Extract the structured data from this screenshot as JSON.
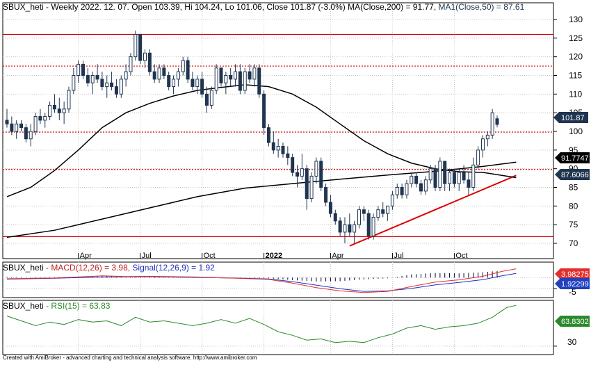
{
  "colors": {
    "background": "#ffffff",
    "grid": "#c8c8c8",
    "frame": "#000000",
    "candle_up_fill": "#ffffff",
    "candle_up_stroke": "#1f3550",
    "candle_down_fill": "#1f3550",
    "ma200": "#000000",
    "ma50": "#000000",
    "hline_solid": "#d40000",
    "hline_dotted": "#d40000",
    "trendline": "#e00000",
    "macd_line": "#e03030",
    "signal_line": "#2030c0",
    "histogram": "#000033",
    "rsi_line": "#2a8a2a",
    "price_badge": "#1f3550",
    "ma200_badge": "#000000",
    "ma50_badge": "#1f3550",
    "macd_badge": "#e03030",
    "signal_badge": "#2040c0",
    "rsi_badge": "#2a8a2a"
  },
  "price_panel": {
    "title_symbol": "SBUX_heti",
    "title_info": " - Weekly 2022. 12. 07. Open 103.39, Hi 104.24, Lo 101.06, Close 101.87 (-3.0%)",
    "title_ma200": " MA(Close,200) = 91.77,",
    "title_ma50": " MA1(Close,50) = 87.61",
    "badge_close": "101.87",
    "badge_ma200": "91.7747",
    "badge_ma50": "87.6066"
  },
  "macd_panel": {
    "title_symbol": "SBUX_heti",
    "title_macd": " - MACD(12,26) = 3.98,",
    "title_signal": " Signal(12,26,9) = 1.92",
    "badge_macd": "3.98275",
    "badge_signal": "1.92299",
    "tick_label": "-5"
  },
  "rsi_panel": {
    "title_symbol": "SBUX_heti",
    "title_rsi": " - RSI(15) = 63.83",
    "badge_rsi": "63.8302",
    "tick_label": "30"
  },
  "footer": "Created with AmiBroker - advanced charting and technical analysis software. http://www.amibroker.com",
  "chart_data": {
    "type": "candlestick",
    "title": "SBUX_heti - Weekly 2022. 12. 07. Open 103.39, Hi 104.24, Lo 101.06, Close 101.87 (-3.0%)",
    "period": "weekly",
    "y_ticks": [
      70,
      75,
      80,
      85,
      90,
      95,
      100,
      105,
      110,
      115,
      120,
      125,
      130
    ],
    "ylim": [
      67,
      131
    ],
    "x_tick_labels": [
      {
        "label": "Apr",
        "index": 15
      },
      {
        "label": "Jul",
        "index": 28
      },
      {
        "label": "Oct",
        "index": 41
      },
      {
        "label": "2022",
        "index": 54
      },
      {
        "label": "Apr",
        "index": 68
      },
      {
        "label": "Jul",
        "index": 81
      },
      {
        "label": "Oct",
        "index": 94
      }
    ],
    "horizontal_lines": [
      {
        "value": 126.0,
        "style": "solid"
      },
      {
        "value": 117.5,
        "style": "dotted"
      },
      {
        "value": 99.8,
        "style": "dotted"
      },
      {
        "value": 89.8,
        "style": "dotted"
      },
      {
        "value": 71.8,
        "style": "solid"
      }
    ],
    "trendline": {
      "from": {
        "index": 72,
        "value": 69.3
      },
      "to": {
        "index": 107,
        "value": 88.2
      }
    },
    "candles": [
      [
        103,
        106,
        101,
        102
      ],
      [
        102,
        104,
        99,
        100
      ],
      [
        100,
        103,
        98,
        102
      ],
      [
        102,
        103,
        100,
        101
      ],
      [
        101,
        102,
        97,
        98
      ],
      [
        98,
        102,
        96,
        100
      ],
      [
        100,
        105,
        99,
        104
      ],
      [
        104,
        106,
        102,
        103
      ],
      [
        103,
        105,
        101,
        104
      ],
      [
        104,
        108,
        103,
        107
      ],
      [
        107,
        110,
        105,
        106
      ],
      [
        106,
        109,
        103,
        105
      ],
      [
        105,
        108,
        102,
        106
      ],
      [
        106,
        112,
        105,
        111
      ],
      [
        111,
        117,
        110,
        115
      ],
      [
        115,
        119,
        113,
        118
      ],
      [
        118,
        119,
        114,
        115
      ],
      [
        115,
        117,
        112,
        113
      ],
      [
        113,
        116,
        110,
        115
      ],
      [
        115,
        118,
        113,
        114
      ],
      [
        114,
        116,
        111,
        112
      ],
      [
        112,
        115,
        109,
        113
      ],
      [
        113,
        116,
        111,
        112
      ],
      [
        112,
        114,
        109,
        110
      ],
      [
        110,
        115,
        109,
        114
      ],
      [
        114,
        118,
        112,
        116
      ],
      [
        116,
        121,
        115,
        120
      ],
      [
        120,
        127,
        119,
        126
      ],
      [
        126,
        126,
        118,
        119
      ],
      [
        119,
        122,
        117,
        121
      ],
      [
        121,
        122,
        115,
        116
      ],
      [
        116,
        118,
        113,
        114
      ],
      [
        114,
        118,
        113,
        117
      ],
      [
        117,
        118,
        114,
        115
      ],
      [
        115,
        116,
        111,
        112
      ],
      [
        112,
        115,
        110,
        114
      ],
      [
        114,
        117,
        112,
        116
      ],
      [
        116,
        120,
        115,
        119
      ],
      [
        119,
        120,
        113,
        114
      ],
      [
        114,
        116,
        111,
        112
      ],
      [
        112,
        115,
        110,
        114
      ],
      [
        114,
        116,
        109,
        110
      ],
      [
        110,
        112,
        105,
        107
      ],
      [
        107,
        112,
        106,
        111
      ],
      [
        111,
        118,
        110,
        117
      ],
      [
        117,
        117,
        112,
        113
      ],
      [
        113,
        116,
        110,
        115
      ],
      [
        115,
        117,
        112,
        114
      ],
      [
        114,
        118,
        112,
        116
      ],
      [
        116,
        118,
        110,
        111
      ],
      [
        111,
        117,
        110,
        116
      ],
      [
        116,
        118,
        113,
        114
      ],
      [
        114,
        118,
        112,
        117
      ],
      [
        117,
        118,
        109,
        110
      ],
      [
        110,
        111,
        99,
        101
      ],
      [
        101,
        102,
        96,
        97
      ],
      [
        97,
        100,
        94,
        95
      ],
      [
        95,
        98,
        93,
        96
      ],
      [
        96,
        97,
        93,
        94
      ],
      [
        94,
        96,
        91,
        93
      ],
      [
        93,
        94,
        88,
        89
      ],
      [
        89,
        91,
        85,
        88
      ],
      [
        88,
        94,
        87,
        90
      ],
      [
        90,
        91,
        79,
        82
      ],
      [
        82,
        89,
        81,
        88
      ],
      [
        88,
        93,
        86,
        92
      ],
      [
        92,
        93,
        84,
        85
      ],
      [
        85,
        86,
        80,
        81
      ],
      [
        81,
        83,
        77,
        78
      ],
      [
        78,
        79,
        75,
        76
      ],
      [
        76,
        77,
        72,
        73
      ],
      [
        73,
        77,
        70,
        75
      ],
      [
        75,
        78,
        72,
        73
      ],
      [
        73,
        76,
        70,
        75
      ],
      [
        75,
        80,
        74,
        79
      ],
      [
        79,
        80,
        76,
        78
      ],
      [
        78,
        79,
        71,
        72
      ],
      [
        72,
        78,
        71,
        77
      ],
      [
        77,
        80,
        76,
        79
      ],
      [
        79,
        81,
        77,
        78
      ],
      [
        78,
        80,
        76,
        80
      ],
      [
        80,
        84,
        79,
        83
      ],
      [
        83,
        86,
        82,
        85
      ],
      [
        85,
        86,
        82,
        83
      ],
      [
        83,
        87,
        82,
        86
      ],
      [
        86,
        89,
        85,
        88
      ],
      [
        88,
        89,
        85,
        86
      ],
      [
        86,
        87,
        83,
        84
      ],
      [
        84,
        88,
        83,
        87
      ],
      [
        87,
        91,
        86,
        90
      ],
      [
        90,
        91,
        84,
        85
      ],
      [
        85,
        93,
        84,
        92
      ],
      [
        92,
        92,
        84,
        86
      ],
      [
        86,
        90,
        84,
        89
      ],
      [
        89,
        90,
        85,
        86
      ],
      [
        86,
        90,
        84,
        89
      ],
      [
        89,
        91,
        86,
        87
      ],
      [
        87,
        89,
        83,
        85
      ],
      [
        85,
        93,
        84,
        91
      ],
      [
        91,
        96,
        90,
        95
      ],
      [
        95,
        99,
        93,
        98
      ],
      [
        98,
        100,
        96,
        99
      ],
      [
        99,
        106,
        98,
        105
      ],
      [
        103.39,
        104.24,
        101.06,
        101.87
      ]
    ],
    "series": [
      {
        "name": "MA(Close,200)",
        "last": 91.77,
        "values": [
          [
            0,
            71.6
          ],
          [
            10,
            73.5
          ],
          [
            20,
            76.5
          ],
          [
            30,
            79.5
          ],
          [
            40,
            82.5
          ],
          [
            50,
            84.8
          ],
          [
            60,
            86.0
          ],
          [
            70,
            87.2
          ],
          [
            80,
            88.3
          ],
          [
            90,
            89.3
          ],
          [
            100,
            90.6
          ],
          [
            107,
            91.77
          ]
        ]
      },
      {
        "name": "MA1(Close,50)",
        "last": 87.61,
        "values": [
          [
            0,
            82.5
          ],
          [
            5,
            85.0
          ],
          [
            10,
            89.5
          ],
          [
            15,
            95.0
          ],
          [
            20,
            101.0
          ],
          [
            25,
            105.0
          ],
          [
            30,
            107.5
          ],
          [
            35,
            109.5
          ],
          [
            40,
            111.0
          ],
          [
            45,
            111.8
          ],
          [
            50,
            112.5
          ],
          [
            55,
            112.0
          ],
          [
            60,
            110.0
          ],
          [
            65,
            106.5
          ],
          [
            70,
            102.0
          ],
          [
            75,
            97.5
          ],
          [
            80,
            94.0
          ],
          [
            85,
            91.5
          ],
          [
            90,
            90.0
          ],
          [
            95,
            89.2
          ],
          [
            100,
            89.0
          ],
          [
            104,
            88.2
          ],
          [
            107,
            87.61
          ]
        ]
      }
    ],
    "macd": {
      "macd_last": 3.98,
      "signal_last": 1.92,
      "tick_values": [
        -5
      ],
      "ylim": [
        -9,
        7
      ],
      "macd_values": [
        [
          0,
          -0.5
        ],
        [
          10,
          -0.2
        ],
        [
          20,
          0.8
        ],
        [
          25,
          0.5
        ],
        [
          30,
          0.6
        ],
        [
          40,
          0.3
        ],
        [
          45,
          -0.1
        ],
        [
          50,
          -0.4
        ],
        [
          55,
          -0.8
        ],
        [
          60,
          -2.5
        ],
        [
          65,
          -4.5
        ],
        [
          70,
          -6.0
        ],
        [
          75,
          -6.7
        ],
        [
          80,
          -6.2
        ],
        [
          85,
          -4.0
        ],
        [
          90,
          -2.0
        ],
        [
          95,
          -1.0
        ],
        [
          100,
          0.6
        ],
        [
          104,
          2.8
        ],
        [
          107,
          3.98
        ]
      ],
      "signal_values": [
        [
          0,
          -0.7
        ],
        [
          10,
          -0.3
        ],
        [
          20,
          0.3
        ],
        [
          30,
          0.4
        ],
        [
          40,
          0.1
        ],
        [
          50,
          -0.3
        ],
        [
          55,
          -0.6
        ],
        [
          60,
          -1.8
        ],
        [
          65,
          -3.4
        ],
        [
          70,
          -5.0
        ],
        [
          75,
          -6.2
        ],
        [
          80,
          -6.0
        ],
        [
          85,
          -4.9
        ],
        [
          90,
          -3.3
        ],
        [
          95,
          -2.2
        ],
        [
          100,
          -0.9
        ],
        [
          104,
          0.8
        ],
        [
          107,
          1.92
        ]
      ]
    },
    "rsi": {
      "rsi_last": 63.83,
      "tick_values": [
        30
      ],
      "ylim": [
        23,
        68
      ],
      "values": [
        [
          0,
          55
        ],
        [
          3,
          51
        ],
        [
          6,
          47
        ],
        [
          9,
          50
        ],
        [
          12,
          48
        ],
        [
          15,
          52
        ],
        [
          18,
          50
        ],
        [
          21,
          51
        ],
        [
          24,
          47
        ],
        [
          27,
          54
        ],
        [
          30,
          50
        ],
        [
          33,
          51
        ],
        [
          36,
          49
        ],
        [
          39,
          47
        ],
        [
          42,
          49
        ],
        [
          45,
          52
        ],
        [
          48,
          49
        ],
        [
          51,
          53
        ],
        [
          54,
          48
        ],
        [
          57,
          42
        ],
        [
          60,
          39
        ],
        [
          63,
          35
        ],
        [
          66,
          36
        ],
        [
          69,
          33
        ],
        [
          72,
          34
        ],
        [
          75,
          33
        ],
        [
          78,
          37
        ],
        [
          81,
          40
        ],
        [
          84,
          45
        ],
        [
          87,
          47
        ],
        [
          90,
          44
        ],
        [
          93,
          46
        ],
        [
          96,
          47
        ],
        [
          99,
          49
        ],
        [
          102,
          54
        ],
        [
          105,
          62
        ],
        [
          107,
          63.83
        ]
      ]
    }
  }
}
